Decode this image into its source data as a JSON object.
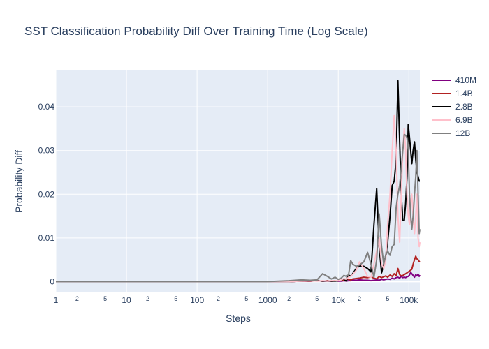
{
  "chart_data": {
    "type": "line",
    "title": "SST Classification Probability Diff Over Training Time (Log Scale)",
    "xlabel": "Steps",
    "ylabel": "Probability Diff",
    "x_scale": "log",
    "xlim": [
      1,
      143000
    ],
    "ylim": [
      -0.0025,
      0.0485
    ],
    "x_tick_values": [
      1,
      10,
      100,
      1000,
      10000,
      100000
    ],
    "x_tick_labels": [
      "1",
      "10",
      "100",
      "1000",
      "10k",
      "100k"
    ],
    "x_minor_values": [
      2,
      5,
      20,
      50,
      200,
      500,
      2000,
      5000,
      20000,
      50000
    ],
    "x_minor_labels": [
      "2",
      "5",
      "2",
      "5",
      "2",
      "5",
      "2",
      "5",
      "2",
      "5"
    ],
    "y_tick_values": [
      0,
      0.01,
      0.02,
      0.03,
      0.04
    ],
    "y_tick_labels": [
      "0",
      "0.01",
      "0.02",
      "0.03",
      "0.04"
    ],
    "grid": true,
    "legend_position": "top-right",
    "x": [
      1,
      2,
      4,
      8,
      16,
      32,
      64,
      128,
      256,
      512,
      1000,
      2000,
      3000,
      4000,
      5000,
      6000,
      7000,
      8000,
      9000,
      10000,
      11000,
      12000,
      13000,
      14000,
      15000,
      16000,
      18000,
      20000,
      23000,
      26000,
      29000,
      32000,
      35000,
      38000,
      41000,
      44000,
      47000,
      50000,
      54000,
      58000,
      62000,
      66000,
      70000,
      74000,
      78000,
      82000,
      86000,
      90000,
      94000,
      98000,
      102000,
      106000,
      110000,
      115000,
      120000,
      125000,
      130000,
      135000,
      140000,
      143000
    ],
    "series": [
      {
        "name": "410M",
        "color": "#800080",
        "values": [
          0,
          0,
          0,
          0,
          0,
          0,
          0,
          0,
          0,
          0,
          0,
          0,
          0.0001,
          0.0001,
          0.0002,
          0.0001,
          0.0001,
          0.0001,
          0.0002,
          0.0001,
          0.0001,
          0.0002,
          0.0001,
          0.0002,
          0.0002,
          0.0003,
          0.0003,
          0.0004,
          0.0003,
          0.0003,
          0.0002,
          0.0003,
          0.0004,
          0.0003,
          0.0005,
          0.0004,
          0.0005,
          0.0006,
          0.0005,
          0.0008,
          0.0006,
          0.0009,
          0.001,
          0.0008,
          0.0012,
          0.0009,
          0.001,
          0.0009,
          0.0011,
          0.0012,
          0.0015,
          0.0021,
          0.0018,
          0.0014,
          0.001,
          0.0016,
          0.0013,
          0.0017,
          0.0012,
          0.0015
        ]
      },
      {
        "name": "1.4B",
        "color": "#b22222",
        "values": [
          0,
          0,
          0,
          0,
          0,
          0,
          0,
          0,
          0,
          0,
          0,
          0,
          0.0001,
          0.0001,
          0.0002,
          0.0001,
          0.0002,
          0.0001,
          0.0002,
          0.0002,
          0.0003,
          0.0003,
          0.0006,
          0.0005,
          0.0004,
          0.0006,
          0.0007,
          0.0008,
          0.001,
          0.0009,
          0.0011,
          0.0008,
          0.0006,
          0.0012,
          0.0009,
          0.0011,
          0.0013,
          0.001,
          0.0015,
          0.0012,
          0.0018,
          0.0014,
          0.003,
          0.0016,
          0.0013,
          0.0014,
          0.0016,
          0.0018,
          0.002,
          0.0022,
          0.0024,
          0.0026,
          0.0028,
          0.004,
          0.005,
          0.0058,
          0.0052,
          0.005,
          0.0046,
          0.0045
        ]
      },
      {
        "name": "2.8B",
        "color": "#000000",
        "values": [
          0,
          0,
          0,
          0,
          0,
          0,
          0,
          0,
          0,
          0,
          0,
          0,
          0.0001,
          0.0002,
          0.0002,
          0.0001,
          0.0001,
          0.0001,
          0.0001,
          0.0002,
          0.0004,
          0.0006,
          0.0001,
          0.0015,
          0.0012,
          0.0018,
          0.003,
          0.0036,
          0.0035,
          0.003,
          0.0022,
          0.013,
          0.0213,
          0.008,
          0.002,
          0.004,
          0.006,
          0.009,
          0.015,
          0.022,
          0.023,
          0.028,
          0.046,
          0.032,
          0.02,
          0.014,
          0.014,
          0.018,
          0.024,
          0.036,
          0.033,
          0.03,
          0.027,
          0.03,
          0.032,
          0.028,
          0.025,
          0.024,
          0.023,
          0.023
        ]
      },
      {
        "name": "6.9B",
        "color": "#ffc0cb",
        "values": [
          0,
          0,
          0,
          0,
          0,
          0,
          0,
          0,
          0,
          0,
          0,
          0,
          0.0001,
          0.0002,
          0.0001,
          0.0002,
          0.0001,
          0.0002,
          0.0002,
          0.0003,
          0.0004,
          0.0007,
          0.0005,
          0.001,
          0.0012,
          0.0016,
          0.0026,
          0.0045,
          0.003,
          0.0012,
          0.001,
          0.004,
          0.007,
          0.01,
          0.004,
          0.003,
          0.005,
          0.013,
          0.02,
          0.03,
          0.038,
          0.03,
          0.015,
          0.009,
          0.02,
          0.03,
          0.035,
          0.03,
          0.02,
          0.015,
          0.013,
          0.018,
          0.02,
          0.015,
          0.011,
          0.015,
          0.02,
          0.01,
          0.008,
          0.009
        ]
      },
      {
        "name": "12B",
        "color": "#808080",
        "values": [
          0,
          0,
          0,
          0,
          0,
          0,
          0,
          0,
          0,
          0,
          0,
          0.0002,
          0.0004,
          0.0003,
          0.0004,
          0.0018,
          0.0012,
          0.0006,
          0.001,
          0.0005,
          0.0008,
          0.0014,
          0.0012,
          0.0016,
          0.0048,
          0.004,
          0.0035,
          0.0038,
          0.0045,
          0.0067,
          0.004,
          0.001,
          0.005,
          0.0155,
          0.008,
          0.004,
          0.006,
          0.007,
          0.006,
          0.008,
          0.0085,
          0.017,
          0.02,
          0.022,
          0.026,
          0.03,
          0.0337,
          0.0335,
          0.033,
          0.03,
          0.02,
          0.015,
          0.012,
          0.015,
          0.02,
          0.024,
          0.03,
          0.02,
          0.011,
          0.012
        ]
      }
    ]
  }
}
